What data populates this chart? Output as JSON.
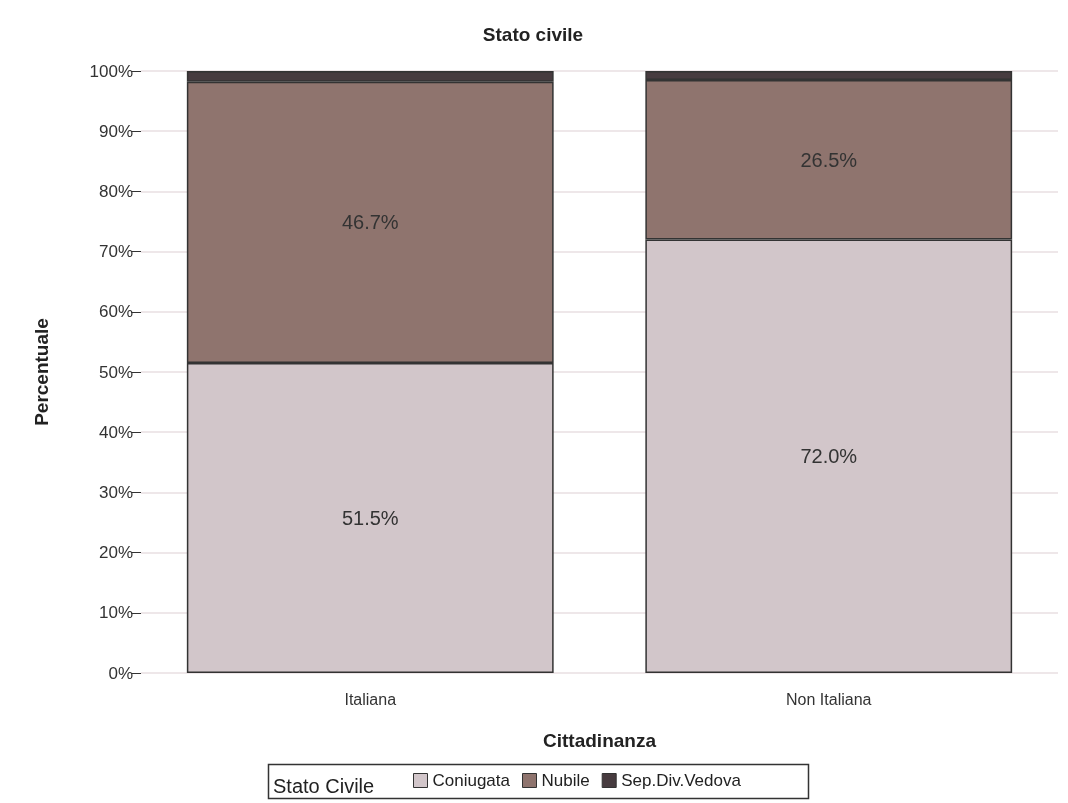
{
  "chart_data": {
    "type": "bar",
    "stacked": true,
    "title": "Stato civile",
    "xlabel": "Cittadinanza",
    "ylabel": "Percentuale",
    "legend_title": "Stato Civile",
    "legend": "bottom",
    "grid": "y",
    "categories": [
      "Italiana",
      "Non Italiana"
    ],
    "series": [
      {
        "name": "Coniugata",
        "color": "#d2c6ca",
        "values": [
          51.5,
          72.0
        ],
        "value_labels": [
          "51.5%",
          "72.0%"
        ]
      },
      {
        "name": "Nubile",
        "color": "#8f746e",
        "values": [
          46.7,
          26.5
        ],
        "value_labels": [
          "46.7%",
          "26.5%"
        ]
      },
      {
        "name": "Sep.Div.Vedova",
        "color": "#473b3f",
        "values": [
          1.8,
          1.5
        ],
        "value_labels": [
          null,
          null
        ]
      }
    ],
    "ylim": [
      0,
      100
    ],
    "yticks": [
      {
        "value": 0,
        "label": "0%"
      },
      {
        "value": 10,
        "label": "10%"
      },
      {
        "value": 20,
        "label": "20%"
      },
      {
        "value": 30,
        "label": "30%"
      },
      {
        "value": 40,
        "label": "40%"
      },
      {
        "value": 50,
        "label": "50%"
      },
      {
        "value": 60,
        "label": "60%"
      },
      {
        "value": 70,
        "label": "70%"
      },
      {
        "value": 80,
        "label": "80%"
      },
      {
        "value": 90,
        "label": "90%"
      },
      {
        "value": 100,
        "label": "100%"
      }
    ]
  }
}
